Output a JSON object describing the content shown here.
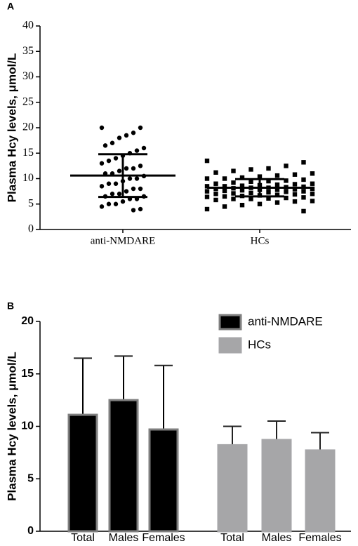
{
  "chart_data": [
    {
      "type": "dot-plot",
      "panel_label": "A",
      "y_label": "Plasma Hcy levels, μmol/L",
      "categories": [
        "anti-NMDARE",
        "HCs"
      ],
      "points": [
        [
          20,
          20,
          19,
          18.5,
          18,
          17,
          16.5,
          16,
          15.5,
          15,
          14.5,
          14,
          13.5,
          13,
          12.5,
          12,
          12,
          11.5,
          11,
          11,
          10.5,
          10,
          10,
          9.5,
          9,
          9,
          8.5,
          8,
          8,
          7.5,
          7,
          7,
          6.5,
          6.5,
          6,
          6,
          5.5,
          5,
          5,
          4.5,
          4,
          3.8
        ],
        [
          13.5,
          13.2,
          12.5,
          12,
          11.8,
          11.5,
          11.2,
          11,
          10.8,
          10.6,
          10.4,
          10.2,
          10,
          10,
          9.8,
          9.6,
          9.5,
          9.4,
          9.2,
          9,
          9,
          8.9,
          8.8,
          8.7,
          8.6,
          8.5,
          8.5,
          8.4,
          8.3,
          8.2,
          8.2,
          8.1,
          8,
          8,
          7.9,
          7.8,
          7.8,
          7.7,
          7.6,
          7.5,
          7.5,
          7.4,
          7.3,
          7.2,
          7.1,
          7,
          7,
          6.9,
          6.8,
          6.7,
          6.6,
          6.5,
          6.4,
          6.3,
          6.2,
          6.1,
          6,
          6,
          5.8,
          5.6,
          5.5,
          5.3,
          5,
          4.8,
          4.5,
          4,
          3.6
        ]
      ],
      "means": [
        10.6,
        8.2
      ],
      "sds": [
        4.2,
        1.7
      ],
      "color": "#000000",
      "ylim": [
        0,
        40
      ],
      "yticks": [
        0,
        5,
        10,
        15,
        20,
        25,
        30,
        35,
        40
      ]
    },
    {
      "type": "bar",
      "panel_label": "B",
      "y_label": "Plasma Hcy levels, μmol/L",
      "categories": [
        "Total",
        "Males",
        "Females",
        "Total",
        "Males",
        "Females"
      ],
      "series": [
        {
          "name": "anti-NMDARE",
          "color": "#000000",
          "values": [
            11.1,
            12.5,
            9.7,
            null,
            null,
            null
          ],
          "errors": [
            5.4,
            4.2,
            6.1,
            null,
            null,
            null
          ]
        },
        {
          "name": "HCs",
          "color": "#a6a6a8",
          "values": [
            null,
            null,
            null,
            8.2,
            8.7,
            7.7
          ],
          "errors": [
            null,
            null,
            null,
            1.8,
            1.8,
            1.7
          ]
        }
      ],
      "legend": "top-right",
      "ylim": [
        0,
        20
      ],
      "yticks": [
        0,
        5,
        10,
        15,
        20
      ]
    }
  ]
}
